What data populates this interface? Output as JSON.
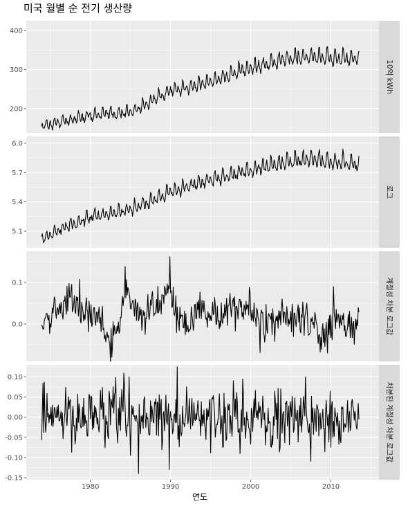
{
  "chart_data": {
    "type": "line",
    "title": "미국 월별 순 전기 생산량",
    "xlabel": "연도",
    "x_ticks": [
      "1980",
      "1990",
      "2000",
      "2010"
    ],
    "xlim": [
      1972.0,
      2016.0
    ],
    "start": 1973.917,
    "end": 2013.5,
    "facets": [
      {
        "strip": "10억 kWh",
        "ylim": [
          138,
          425
        ],
        "yticks": [
          200,
          300,
          400
        ],
        "ytick_labels": [
          "200",
          "300",
          "400"
        ],
        "series": "level",
        "trend": [
          [
            1974,
            155
          ],
          [
            1980,
            182
          ],
          [
            1985,
            190
          ],
          [
            1990,
            243
          ],
          [
            1995,
            268
          ],
          [
            2000,
            303
          ],
          [
            2005,
            328
          ],
          [
            2008,
            332
          ],
          [
            2010,
            328
          ],
          [
            2013.5,
            325
          ]
        ],
        "season_amp": 25
      },
      {
        "strip": "로그",
        "ylim": [
          4.93,
          6.07
        ],
        "yticks": [
          5.1,
          5.4,
          5.7,
          6.0
        ],
        "ytick_labels": [
          "5.1",
          "5.4",
          "5.7",
          "6.0"
        ],
        "series": "log",
        "trend": [
          [
            1974,
            5.03
          ],
          [
            1980,
            5.24
          ],
          [
            1985,
            5.31
          ],
          [
            1990,
            5.5
          ],
          [
            1995,
            5.62
          ],
          [
            2000,
            5.72
          ],
          [
            2005,
            5.81
          ],
          [
            2008,
            5.83
          ],
          [
            2010,
            5.8
          ],
          [
            2013.5,
            5.78
          ]
        ],
        "season_amp": 0.1
      },
      {
        "strip": "계절성 차분 로그값",
        "ylim": [
          -0.09,
          0.175
        ],
        "yticks": [
          0.0,
          0.1
        ],
        "ytick_labels": [
          "0.0",
          "0.1"
        ],
        "series": "seasonal_diff",
        "level": [
          [
            1974,
            0.0
          ],
          [
            1976,
            0.04
          ],
          [
            1977.5,
            0.06
          ],
          [
            1979,
            0.045
          ],
          [
            1981,
            0.01
          ],
          [
            1982.5,
            -0.04
          ],
          [
            1983.5,
            0.0
          ],
          [
            1984.5,
            0.08
          ],
          [
            1985.5,
            0.03
          ],
          [
            1987,
            0.02
          ],
          [
            1988.5,
            0.05
          ],
          [
            1989.5,
            0.09
          ],
          [
            1990.5,
            0.03
          ],
          [
            1992,
            0.01
          ],
          [
            1994,
            0.03
          ],
          [
            1996,
            0.02
          ],
          [
            1998,
            0.04
          ],
          [
            2000,
            0.03
          ],
          [
            2001.5,
            -0.01
          ],
          [
            2003,
            0.01
          ],
          [
            2006,
            0.02
          ],
          [
            2008,
            0.0
          ],
          [
            2009.5,
            -0.04
          ],
          [
            2010.5,
            0.04
          ],
          [
            2012,
            -0.01
          ],
          [
            2013.5,
            0.0
          ]
        ],
        "spikes": [
          [
            1989.9,
            0.162
          ],
          [
            1984.3,
            0.138
          ],
          [
            1982.7,
            -0.08
          ],
          [
            2009.6,
            -0.07
          ],
          [
            2010.3,
            0.09
          ]
        ],
        "noise": 0.022
      },
      {
        "strip": "차분된 계절성 차분 로그값",
        "ylim": [
          -0.155,
          0.13
        ],
        "yticks": [
          -0.15,
          -0.1,
          -0.05,
          0.0,
          0.05,
          0.1
        ],
        "ytick_labels": [
          "-0.15",
          "-0.10",
          "-0.05",
          "0.00",
          "0.05",
          "0.10"
        ],
        "series": "double_diff",
        "spikes": [
          [
            1990.8,
            0.125
          ],
          [
            1989.8,
            -0.13
          ],
          [
            1986.0,
            -0.14
          ],
          [
            1985.0,
            -0.095
          ],
          [
            2007.5,
            -0.11
          ],
          [
            1984.8,
            0.1
          ],
          [
            1999.0,
            0.095
          ],
          [
            2006.8,
            0.1
          ]
        ],
        "noise": 0.034
      }
    ],
    "colors": {
      "panel_bg": "#ebebeb",
      "grid_major": "#ffffff",
      "strip_bg": "#d9d9d9",
      "line": "#000000"
    }
  }
}
